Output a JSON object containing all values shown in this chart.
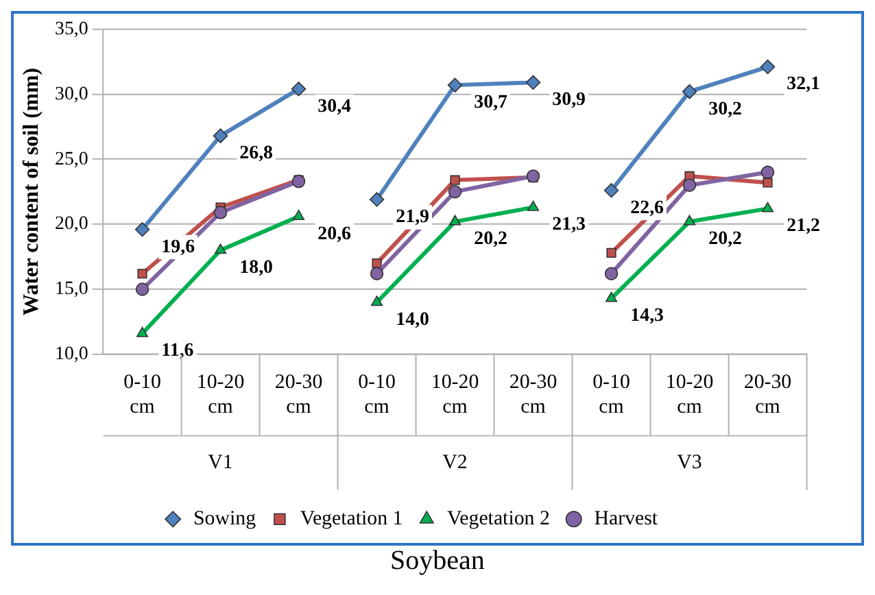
{
  "chart_data": {
    "type": "line",
    "title": "Soybean",
    "ylabel": "Water content of soil (mm)",
    "categories": [
      "0-10 cm",
      "10-20 cm",
      "20-30 cm",
      "0-10 cm",
      "10-20 cm",
      "20-30 cm",
      "0-10 cm",
      "10-20 cm",
      "20-30 cm"
    ],
    "annotations": [
      "V1",
      "V2",
      "V3"
    ],
    "series": [
      {
        "name": "Sowing",
        "color": "#4f81bd",
        "marker": "diamond",
        "values": [
          19.6,
          26.8,
          30.4,
          21.9,
          30.7,
          30.9,
          22.6,
          30.2,
          32.1
        ],
        "value_labels": [
          "19,6",
          "26,8",
          "30,4",
          "21,9",
          "30,7",
          "30,9",
          "22,6",
          "30,2",
          "32,1"
        ]
      },
      {
        "name": "Vegetation 1",
        "color": "#c0504d",
        "marker": "square",
        "values": [
          16.2,
          21.3,
          23.4,
          17.0,
          23.4,
          23.6,
          17.8,
          23.7,
          23.2
        ]
      },
      {
        "name": "Vegetation 2",
        "color": "#00b050",
        "marker": "triangle",
        "values": [
          11.6,
          18.0,
          20.6,
          14.0,
          20.2,
          21.3,
          14.3,
          20.2,
          21.2
        ],
        "value_labels": [
          "11,6",
          "18,0",
          "20,6",
          "14,0",
          "20,2",
          "21,3",
          "14,3",
          "20,2",
          "21,2"
        ]
      },
      {
        "name": "Harvest",
        "color": "#8064a2",
        "marker": "circle",
        "values": [
          15.0,
          20.9,
          23.3,
          16.2,
          22.5,
          23.7,
          16.2,
          23.0,
          24.0
        ]
      }
    ],
    "ylim": [
      10,
      35
    ],
    "yticks": [
      {
        "value": 10,
        "label": "10,0"
      },
      {
        "value": 15,
        "label": "15,0"
      },
      {
        "value": 20,
        "label": "20,0"
      },
      {
        "value": 25,
        "label": "25,0"
      },
      {
        "value": 30,
        "label": "30,0"
      },
      {
        "value": 35,
        "label": "35,0"
      }
    ],
    "grid": "y",
    "legend": "bottom"
  }
}
